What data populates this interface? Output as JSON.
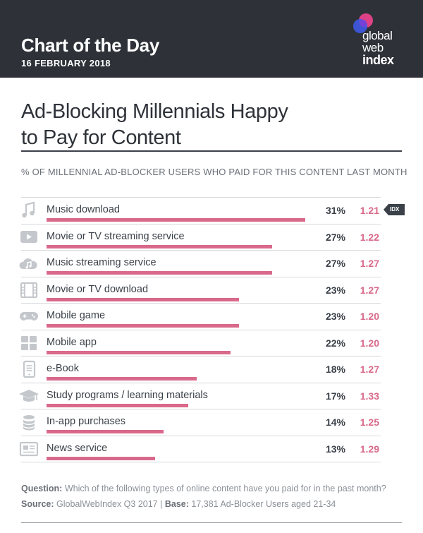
{
  "header": {
    "title": "Chart of the Day",
    "date": "16 FEBRUARY 2018",
    "logo_lines": [
      "global",
      "web",
      "index"
    ]
  },
  "main_title_lines": [
    "Ad-Blocking Millennials Happy",
    "to Pay for Content"
  ],
  "subtitle": "% OF MILLENNIAL AD-BLOCKER USERS WHO PAID FOR THIS CONTENT LAST MONTH",
  "idx_label": "IDX",
  "colors": {
    "bar": "#d9698a",
    "header_bg": "#2e3238",
    "icon": "#c4c7cb"
  },
  "chart_data": {
    "type": "bar",
    "orientation": "horizontal",
    "categories": [
      "Music download",
      "Movie or TV streaming service",
      "Music streaming service",
      "Movie or TV download",
      "Mobile game",
      "Mobile app",
      "e-Book",
      "Study programs / learning materials",
      "In-app purchases",
      "News service"
    ],
    "series": [
      {
        "values": [
          31,
          27,
          27,
          23,
          23,
          22,
          18,
          17,
          14,
          13
        ]
      }
    ],
    "pct_labels": [
      "31%",
      "27%",
      "27%",
      "23%",
      "23%",
      "22%",
      "18%",
      "17%",
      "14%",
      "13%"
    ],
    "index_labels": [
      "1.21",
      "1.22",
      "1.27",
      "1.27",
      "1.20",
      "1.20",
      "1.27",
      "1.33",
      "1.25",
      "1.29"
    ],
    "icons": [
      "music-note-icon",
      "play-button-icon",
      "cloud-music-icon",
      "film-strip-icon",
      "gamepad-icon",
      "app-grid-icon",
      "ebook-icon",
      "graduation-cap-icon",
      "coin-stack-icon",
      "newspaper-icon"
    ],
    "xlim": [
      0,
      40
    ]
  },
  "footer": {
    "question_label": "Question:",
    "question_text": " Which of the following types of online content have you paid for in the past month?",
    "source_label": "Source:",
    "source_text": " GlobalWebIndex Q3 2017  |  ",
    "base_label": "Base:",
    "base_text": " 17,381 Ad-Blocker Users aged 21-34"
  }
}
